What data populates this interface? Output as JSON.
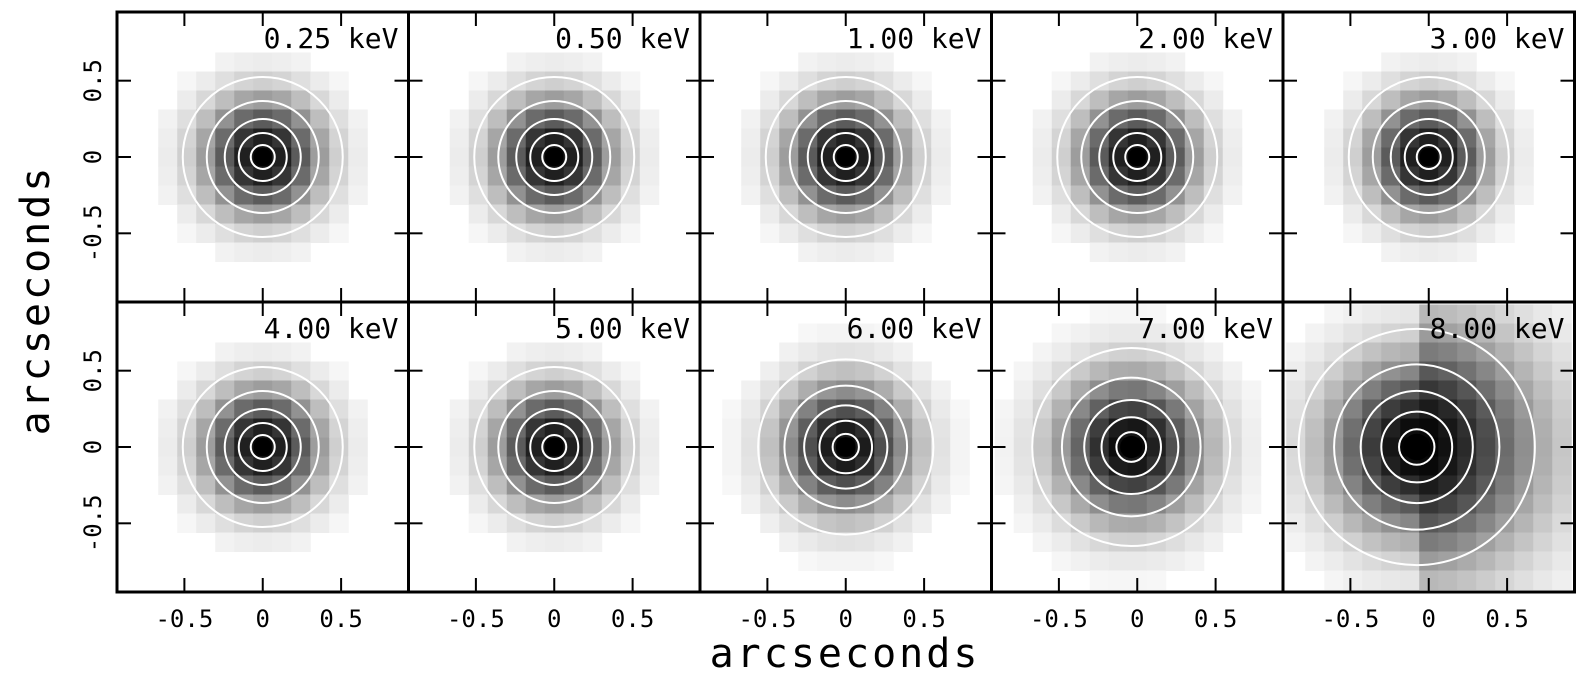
{
  "panels": [
    {
      "label": "0.25 keV"
    },
    {
      "label": "0.50 keV"
    },
    {
      "label": "1.00 keV"
    },
    {
      "label": "2.00 keV"
    },
    {
      "label": "3.00 keV"
    },
    {
      "label": "4.00 keV"
    },
    {
      "label": "5.00 keV"
    },
    {
      "label": "6.00 keV"
    },
    {
      "label": "7.00 keV"
    },
    {
      "label": "8.00 keV"
    }
  ],
  "xlabel": "arcseconds",
  "ylabel": "arcseconds",
  "xlim": [
    -0.93,
    0.93
  ],
  "ylim": [
    -0.95,
    0.95
  ],
  "xticks": [
    -0.5,
    0,
    0.5
  ],
  "yticks": [
    -0.5,
    0,
    0.5
  ]
}
